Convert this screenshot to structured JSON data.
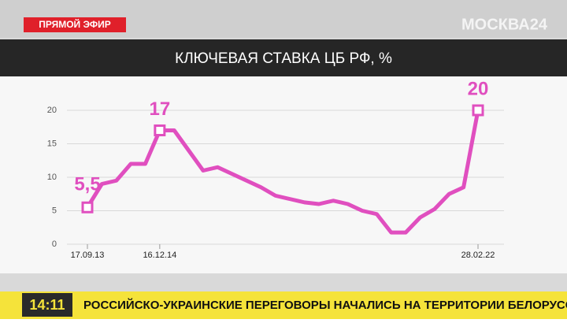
{
  "live_badge": "ПРЯМОЙ ЭФИР",
  "channel_logo": "МОСКВА24",
  "ticker": {
    "time": "14:11",
    "headline": "РОССИЙСКО-УКРАИНСКИЕ ПЕРЕГОВОРЫ НАЧАЛИСЬ НА ТЕРРИТОРИИ БЕЛОРУССИИ"
  },
  "chart_data": {
    "type": "line",
    "title": "КЛЮЧЕВАЯ СТАВКА ЦБ РФ, %",
    "categories": [
      "17.09.13",
      null,
      null,
      null,
      null,
      "16.12.14",
      null,
      null,
      null,
      null,
      null,
      null,
      null,
      null,
      null,
      null,
      null,
      null,
      null,
      null,
      null,
      null,
      null,
      null,
      null,
      null,
      null,
      "28.02.22"
    ],
    "values": [
      5.5,
      9,
      9.5,
      12,
      12,
      17,
      17,
      14,
      11,
      11.5,
      10.5,
      9.5,
      8.5,
      7.25,
      6.75,
      6.25,
      6,
      6.5,
      6,
      5,
      4.5,
      1.75,
      1.75,
      4,
      5.25,
      7.5,
      8.5,
      20
    ],
    "value_labels": [
      "5,5",
      null,
      null,
      null,
      null,
      "17",
      null,
      null,
      null,
      null,
      null,
      null,
      null,
      null,
      null,
      null,
      null,
      null,
      null,
      null,
      null,
      null,
      null,
      null,
      null,
      null,
      null,
      "20"
    ],
    "color": "#e04fbf",
    "ylim": [
      0,
      20
    ],
    "yticks": [
      0,
      5,
      10,
      15,
      20
    ],
    "grid": true
  }
}
